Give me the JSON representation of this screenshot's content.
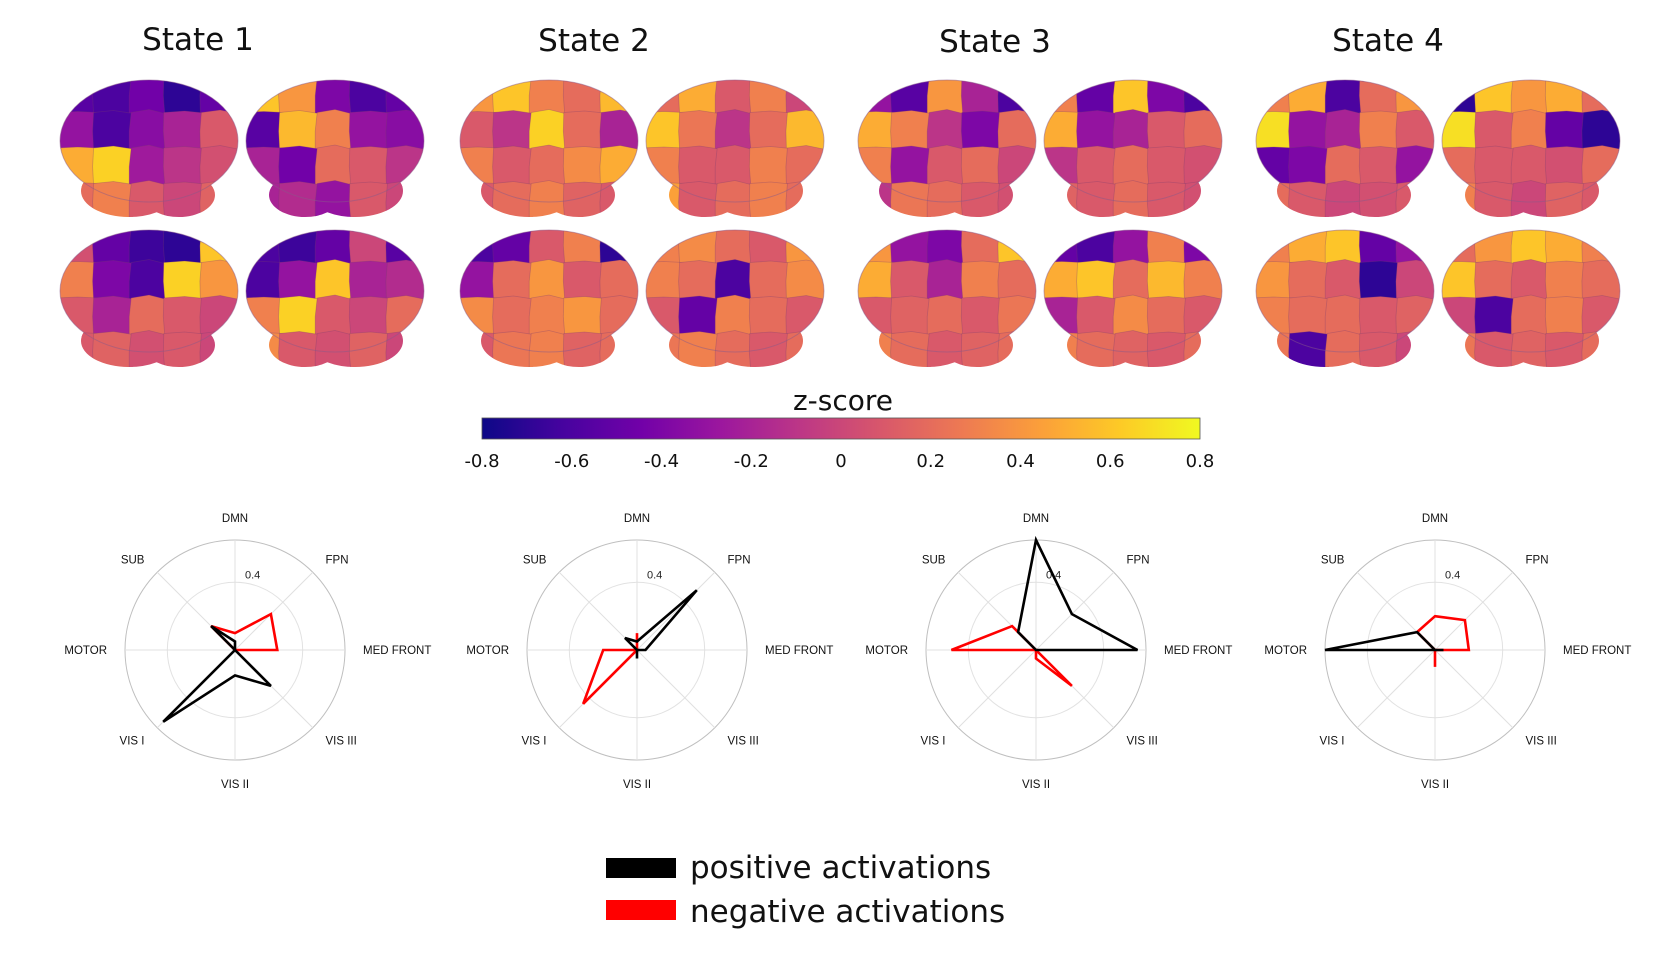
{
  "states": [
    {
      "title": "State 1",
      "views": [
        [
          -0.55,
          -0.6,
          -0.45,
          -0.7,
          -0.5,
          -0.3,
          -0.6,
          -0.35,
          -0.2,
          0.1,
          0.5,
          0.65,
          -0.25,
          -0.1,
          0.05,
          0.2,
          0.3,
          0.1,
          0.0,
          0.15
        ],
        [
          0.6,
          0.4,
          -0.4,
          -0.6,
          -0.5,
          -0.55,
          0.55,
          0.3,
          -0.3,
          -0.35,
          -0.2,
          -0.45,
          0.2,
          0.1,
          -0.1,
          -0.2,
          -0.15,
          -0.3,
          0.1,
          0.0
        ],
        [
          0.05,
          -0.5,
          -0.65,
          -0.7,
          0.6,
          0.3,
          -0.4,
          -0.6,
          0.65,
          0.4,
          0.1,
          -0.2,
          0.2,
          0.1,
          0.0,
          0.1,
          0.15,
          0.05,
          0.1,
          0.0
        ],
        [
          -0.6,
          -0.65,
          -0.5,
          0.0,
          -0.55,
          -0.6,
          -0.3,
          0.6,
          -0.2,
          -0.15,
          0.3,
          0.65,
          0.1,
          0.0,
          0.2,
          0.35,
          0.1,
          0.05,
          0.15,
          0.0
        ]
      ],
      "radar": {
        "positive": [
          0.05,
          0.0,
          0.0,
          0.3,
          0.15,
          0.6,
          0.0,
          0.2
        ],
        "negative": [
          0.1,
          0.3,
          0.25,
          0.0,
          0.0,
          0.0,
          0.0,
          0.2
        ]
      }
    },
    {
      "title": "State 2",
      "views": [
        [
          0.4,
          0.6,
          0.3,
          0.2,
          0.55,
          0.1,
          -0.1,
          0.65,
          0.2,
          -0.2,
          0.3,
          0.1,
          0.2,
          0.35,
          0.5,
          0.1,
          0.2,
          0.3,
          0.15,
          0.1
        ],
        [
          0.2,
          0.5,
          0.1,
          0.3,
          0.0,
          0.6,
          0.25,
          -0.1,
          0.2,
          0.55,
          0.3,
          0.1,
          0.1,
          0.3,
          0.2,
          0.45,
          0.1,
          0.2,
          0.3,
          0.2
        ],
        [
          -0.6,
          -0.5,
          0.1,
          0.3,
          -0.7,
          -0.3,
          0.2,
          0.4,
          0.1,
          0.2,
          0.35,
          0.2,
          0.3,
          0.4,
          0.2,
          0.1,
          0.25,
          0.3,
          0.15,
          0.2
        ],
        [
          0.3,
          0.35,
          0.2,
          0.1,
          0.4,
          0.3,
          0.2,
          -0.6,
          0.2,
          0.35,
          0.1,
          -0.5,
          0.3,
          0.2,
          0.1,
          0.25,
          0.3,
          0.2,
          0.1,
          0.2
        ]
      ],
      "radar": {
        "positive": [
          0.05,
          0.5,
          0.05,
          0.0,
          0.05,
          0.0,
          0.0,
          0.1
        ],
        "negative": [
          0.1,
          0.0,
          0.0,
          0.0,
          0.0,
          0.45,
          0.2,
          0.0
        ]
      }
    },
    {
      "title": "State 3",
      "views": [
        [
          -0.3,
          -0.55,
          0.4,
          -0.2,
          -0.6,
          0.5,
          0.3,
          -0.1,
          -0.4,
          0.2,
          0.3,
          -0.3,
          0.1,
          0.2,
          0.0,
          -0.1,
          0.25,
          0.2,
          0.1,
          0.05
        ],
        [
          0.3,
          -0.5,
          0.6,
          -0.4,
          -0.6,
          0.5,
          -0.3,
          -0.2,
          0.1,
          0.2,
          -0.1,
          0.1,
          0.2,
          0.1,
          0.05,
          0.15,
          0.1,
          0.2,
          0.1,
          0.05
        ],
        [
          0.4,
          -0.3,
          -0.4,
          0.2,
          0.6,
          0.5,
          0.1,
          -0.2,
          0.3,
          0.2,
          0.1,
          0.15,
          0.2,
          0.1,
          0.25,
          0.3,
          0.2,
          0.1,
          0.15,
          0.2
        ],
        [
          -0.5,
          -0.6,
          -0.3,
          0.3,
          -0.4,
          0.5,
          0.6,
          0.2,
          0.55,
          0.3,
          -0.2,
          0.1,
          0.35,
          0.2,
          0.1,
          0.3,
          0.2,
          0.15,
          0.1,
          0.2
        ]
      ],
      "radar": {
        "positive": [
          0.65,
          0.3,
          0.6,
          0.0,
          0.0,
          0.0,
          0.0,
          0.15
        ],
        "negative": [
          0.0,
          0.0,
          0.0,
          0.3,
          0.05,
          0.0,
          0.5,
          0.2
        ]
      }
    },
    {
      "title": "State 4",
      "views": [
        [
          0.3,
          0.5,
          -0.6,
          0.2,
          0.4,
          0.7,
          -0.3,
          -0.2,
          0.3,
          0.1,
          -0.5,
          -0.4,
          0.2,
          0.1,
          -0.3,
          0.2,
          0.1,
          0.0,
          0.05,
          0.1
        ],
        [
          -0.7,
          0.6,
          0.4,
          0.5,
          0.2,
          0.7,
          0.1,
          0.3,
          -0.5,
          -0.7,
          0.2,
          0.1,
          0.1,
          0.05,
          0.2,
          0.3,
          0.1,
          0.0,
          0.15,
          0.1
        ],
        [
          0.3,
          0.5,
          0.6,
          -0.5,
          -0.3,
          0.4,
          0.2,
          0.1,
          -0.7,
          0.0,
          0.3,
          0.2,
          0.2,
          0.1,
          0.15,
          0.25,
          -0.6,
          0.2,
          0.1,
          0.0
        ],
        [
          0.2,
          0.4,
          0.6,
          0.5,
          0.3,
          0.6,
          0.2,
          0.1,
          0.3,
          0.2,
          0.0,
          -0.6,
          0.2,
          0.3,
          0.1,
          0.25,
          0.1,
          0.15,
          0.1,
          0.2
        ]
      ],
      "radar": {
        "positive": [
          0.0,
          0.0,
          0.05,
          0.0,
          0.0,
          0.0,
          0.65,
          0.15
        ],
        "negative": [
          0.2,
          0.25,
          0.2,
          0.0,
          0.1,
          0.0,
          0.0,
          0.15
        ]
      }
    }
  ],
  "colorbar": {
    "title": "z-score",
    "min": -0.8,
    "max": 0.8,
    "ticks": [
      "-0.8",
      "-0.6",
      "-0.4",
      "-0.2",
      "0",
      "0.2",
      "0.4",
      "0.6",
      "0.8"
    ],
    "colors": [
      "#0d0887",
      "#46039f",
      "#7201a8",
      "#9c179e",
      "#bd3786",
      "#d8576b",
      "#ed7953",
      "#fb9f3a",
      "#fdca26",
      "#f0f921"
    ]
  },
  "radar": {
    "axes": [
      "DMN",
      "FPN",
      "MED FRONT",
      "VIS III",
      "VIS II",
      "VIS I",
      "MOTOR",
      "SUB"
    ],
    "ring_label": "0.4",
    "ring_value": 0.4,
    "max_value": 0.65
  },
  "legend": [
    {
      "label": "positive activations",
      "color": "#000000"
    },
    {
      "label": "negative activations",
      "color": "#ff0000"
    }
  ]
}
